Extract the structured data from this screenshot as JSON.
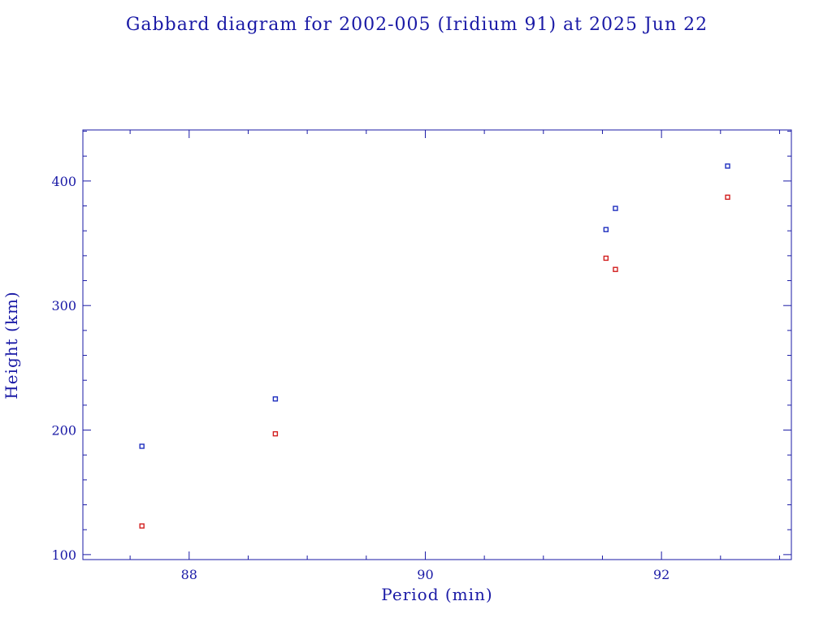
{
  "colors": {
    "axis": "#1a1aa6",
    "text": "#1a1aa6",
    "apogee": "#1f2fbf",
    "perigee": "#d21f1f",
    "background": "#ffffff"
  },
  "chart_data": {
    "type": "scatter",
    "title": "Gabbard diagram for 2002-005 (Iridium 91) at 2025 Jun 22",
    "xlabel": "Period (min)",
    "ylabel": "Height (km)",
    "xlim": [
      87.1,
      93.1
    ],
    "ylim": [
      96,
      441
    ],
    "xticks": [
      88,
      90,
      92
    ],
    "yticks": [
      100,
      200,
      300,
      400
    ],
    "grid": false,
    "series": [
      {
        "marker_color": "#1f2fbf",
        "x": [
          87.6,
          88.73,
          91.53,
          91.61,
          92.56
        ],
        "y": [
          187,
          225,
          361,
          378,
          412
        ]
      },
      {
        "marker_color": "#d21f1f",
        "x": [
          87.6,
          88.73,
          91.53,
          91.61,
          92.56
        ],
        "y": [
          123,
          197,
          338,
          329,
          387
        ]
      }
    ]
  }
}
